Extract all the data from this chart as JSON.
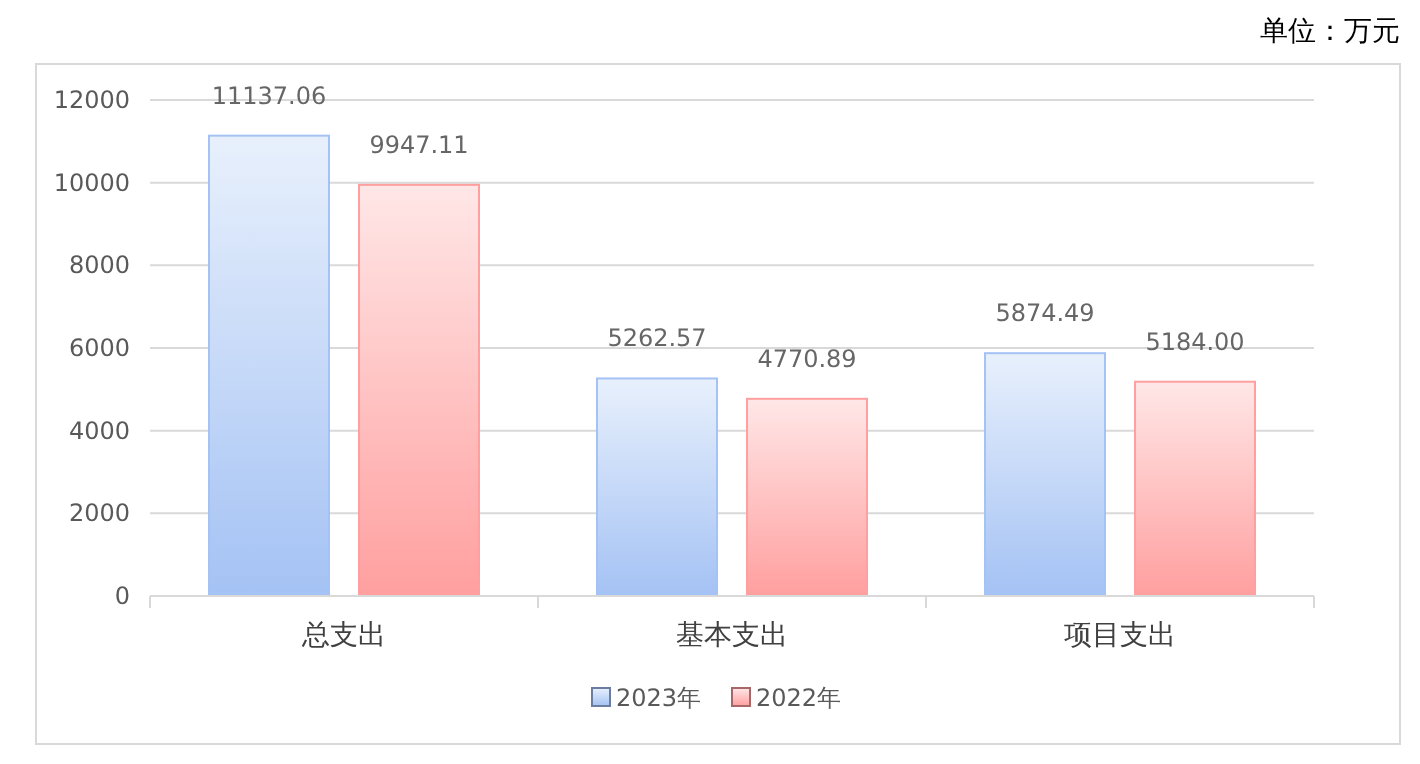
{
  "chart_data": {
    "type": "bar",
    "annotations": [
      "单位：万元"
    ],
    "categories": [
      "总支出",
      "基本支出",
      "项目支出"
    ],
    "series": [
      {
        "name": "2023年",
        "color": "#a4c2f4",
        "values": [
          11137.06,
          5262.57,
          5874.49
        ],
        "value_labels": [
          "11137.06",
          "5262.57",
          "5874.49"
        ]
      },
      {
        "name": "2022年",
        "color": "#ff9f9f",
        "values": [
          9947.11,
          4770.89,
          5184.0
        ],
        "value_labels": [
          "9947.11",
          "4770.89",
          "5184.00"
        ]
      }
    ],
    "ylim": [
      0,
      12000
    ],
    "yticks": [
      0,
      2000,
      4000,
      6000,
      8000,
      10000,
      12000
    ],
    "grid": "y",
    "legend": "bottom"
  }
}
